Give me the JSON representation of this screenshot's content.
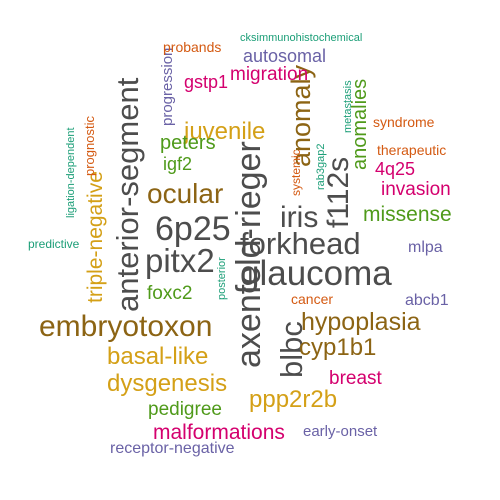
{
  "colors": {
    "gray": "#4d4d4d",
    "brown": "#8c6414",
    "gold": "#d4a017",
    "green": "#4f9a1a",
    "magenta": "#d4006e",
    "purple": "#6a62a6",
    "orange": "#d45a12",
    "teal": "#1b9e77"
  },
  "words": [
    {
      "id": "glaucoma",
      "text": "glaucoma",
      "color": "gray"
    },
    {
      "id": "forkhead",
      "text": "forkhead",
      "color": "gray"
    },
    {
      "id": "6p25",
      "text": "6p25",
      "color": "gray"
    },
    {
      "id": "pitx2",
      "text": "pitx2",
      "color": "gray"
    },
    {
      "id": "iris",
      "text": "iris",
      "color": "gray"
    },
    {
      "id": "axenfeld-rieger",
      "text": "axenfeld-rieger",
      "color": "gray"
    },
    {
      "id": "anterior-segment",
      "text": "anterior-segment",
      "color": "gray"
    },
    {
      "id": "f112s",
      "text": "f112s",
      "color": "gray"
    },
    {
      "id": "blbc",
      "text": "blbc",
      "color": "gray"
    },
    {
      "id": "embryotoxon",
      "text": "embryotoxon",
      "color": "brown"
    },
    {
      "id": "hypoplasia",
      "text": "hypoplasia",
      "color": "brown"
    },
    {
      "id": "ocular",
      "text": "ocular",
      "color": "brown"
    },
    {
      "id": "anomaly",
      "text": "anomaly",
      "color": "brown"
    },
    {
      "id": "cyp1b1",
      "text": "cyp1b1",
      "color": "brown"
    },
    {
      "id": "juvenile",
      "text": "juvenile",
      "color": "gold"
    },
    {
      "id": "basal-like",
      "text": "basal-like",
      "color": "gold"
    },
    {
      "id": "dysgenesis",
      "text": "dysgenesis",
      "color": "gold"
    },
    {
      "id": "ppp2r2b",
      "text": "ppp2r2b",
      "color": "gold"
    },
    {
      "id": "triple-negative",
      "text": "triple-negative",
      "color": "gold"
    },
    {
      "id": "missense",
      "text": "missense",
      "color": "green"
    },
    {
      "id": "peters",
      "text": "peters",
      "color": "green"
    },
    {
      "id": "foxc2",
      "text": "foxc2",
      "color": "green"
    },
    {
      "id": "pedigree",
      "text": "pedigree",
      "color": "green"
    },
    {
      "id": "igf2",
      "text": "igf2",
      "color": "green"
    },
    {
      "id": "anomalies",
      "text": "anomalies",
      "color": "green"
    },
    {
      "id": "malformations",
      "text": "malformations",
      "color": "magenta"
    },
    {
      "id": "breast",
      "text": "breast",
      "color": "magenta"
    },
    {
      "id": "invasion",
      "text": "invasion",
      "color": "magenta"
    },
    {
      "id": "migration",
      "text": "migration",
      "color": "magenta"
    },
    {
      "id": "gstp1",
      "text": "gstp1",
      "color": "magenta"
    },
    {
      "id": "4q25",
      "text": "4q25",
      "color": "magenta"
    },
    {
      "id": "autosomal",
      "text": "autosomal",
      "color": "purple"
    },
    {
      "id": "mlpa",
      "text": "mlpa",
      "color": "purple"
    },
    {
      "id": "abcb1",
      "text": "abcb1",
      "color": "purple"
    },
    {
      "id": "early-onset",
      "text": "early-onset",
      "color": "purple"
    },
    {
      "id": "receptor-negative",
      "text": "receptor-negative",
      "color": "purple"
    },
    {
      "id": "progression",
      "text": "progression",
      "color": "purple"
    },
    {
      "id": "probands",
      "text": "probands",
      "color": "orange"
    },
    {
      "id": "syndrome",
      "text": "syndrome",
      "color": "orange"
    },
    {
      "id": "therapeutic",
      "text": "therapeutic",
      "color": "orange"
    },
    {
      "id": "cancer",
      "text": "cancer",
      "color": "orange"
    },
    {
      "id": "systemic",
      "text": "systemic",
      "color": "orange"
    },
    {
      "id": "prognostic",
      "text": "prognostic",
      "color": "orange"
    },
    {
      "id": "cksimmunohistochemical",
      "text": "cksimmunohistochemical",
      "color": "teal"
    },
    {
      "id": "metastasis",
      "text": "metastasis",
      "color": "teal"
    },
    {
      "id": "rab3gap2",
      "text": "rab3gap2",
      "color": "teal"
    },
    {
      "id": "posterior",
      "text": "posterior",
      "color": "teal"
    },
    {
      "id": "predictive",
      "text": "predictive",
      "color": "teal"
    },
    {
      "id": "ligation-dependent",
      "text": "ligation-dependent",
      "color": "teal"
    }
  ]
}
